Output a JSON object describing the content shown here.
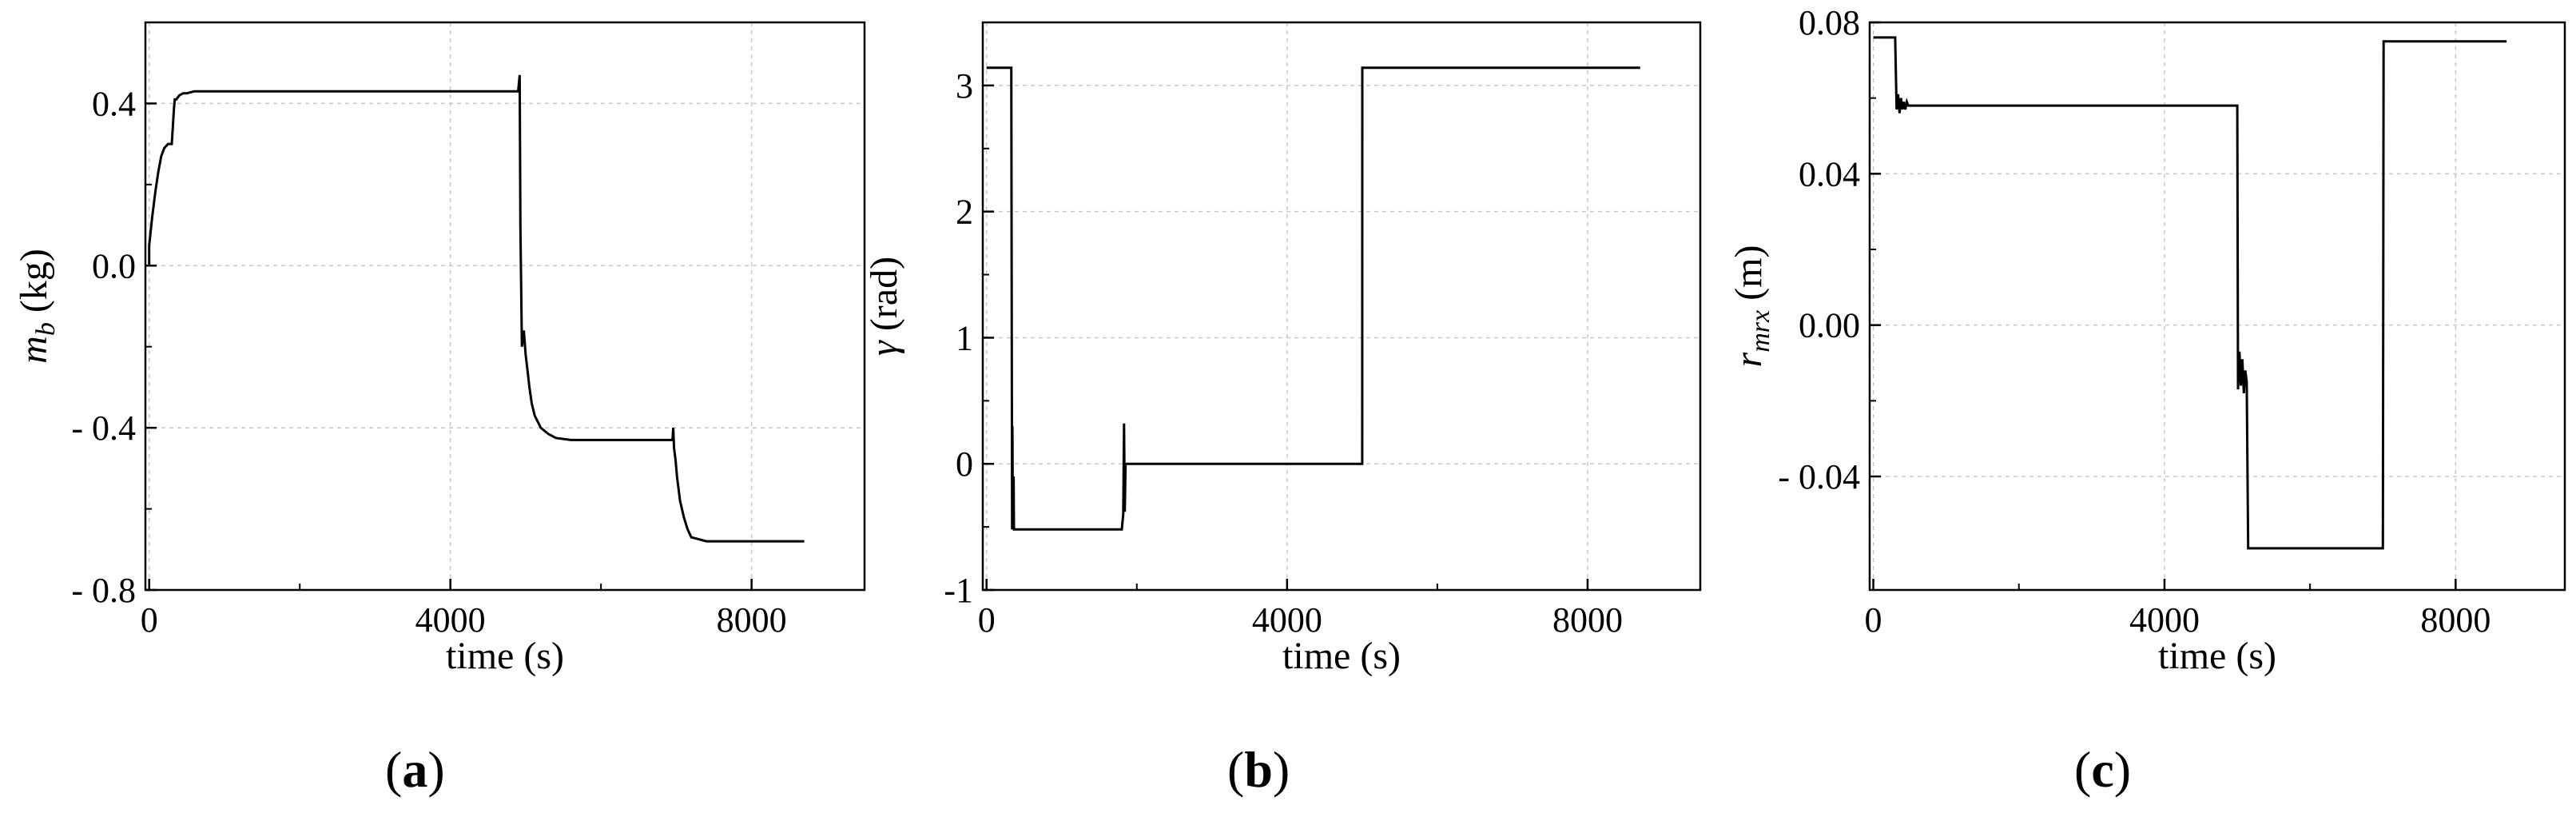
{
  "chart_data": [
    {
      "type": "line",
      "panel_label": "a",
      "xlabel": "time (s)",
      "ylabel_main": "m",
      "ylabel_sub": "b",
      "ylabel_unit": "(kg)",
      "xlim": [
        -50,
        9500
      ],
      "ylim": [
        -0.8,
        0.6
      ],
      "xticks": [
        "0",
        "4000",
        "8000"
      ],
      "xtick_values": [
        0,
        4000,
        8000
      ],
      "yticks": [
        "0.4",
        "0.0",
        "- 0.4",
        "- 0.8"
      ],
      "ytick_values": [
        0.4,
        0.0,
        -0.4,
        -0.8
      ],
      "grid": true,
      "series": [
        {
          "x": [
            0,
            0,
            40,
            80,
            120,
            160,
            200,
            250,
            300,
            330,
            340,
            360,
            400,
            450,
            500,
            600,
            1000,
            2000,
            3000,
            4000,
            4900,
            4920,
            4930,
            4950,
            4975,
            5000,
            5025,
            5050,
            5080,
            5120,
            5200,
            5300,
            5400,
            5600,
            6000,
            6500,
            6950,
            6960,
            6970,
            6990,
            7010,
            7050,
            7100,
            7150,
            7200,
            7300,
            7400,
            7600,
            8000,
            8500,
            8700
          ],
          "y": [
            0.0,
            0.05,
            0.12,
            0.18,
            0.23,
            0.27,
            0.29,
            0.3,
            0.3,
            0.39,
            0.41,
            0.41,
            0.42,
            0.425,
            0.425,
            0.43,
            0.43,
            0.43,
            0.43,
            0.43,
            0.43,
            0.47,
            0.1,
            -0.2,
            -0.16,
            -0.22,
            -0.26,
            -0.3,
            -0.34,
            -0.37,
            -0.4,
            -0.415,
            -0.425,
            -0.43,
            -0.43,
            -0.43,
            -0.43,
            -0.4,
            -0.45,
            -0.48,
            -0.52,
            -0.58,
            -0.62,
            -0.65,
            -0.67,
            -0.675,
            -0.68,
            -0.68,
            -0.68,
            -0.68,
            -0.68
          ]
        }
      ]
    },
    {
      "type": "line",
      "panel_label": "b",
      "xlabel": "time (s)",
      "ylabel_main": "γ",
      "ylabel_sub": "",
      "ylabel_unit": "(rad)",
      "xlim": [
        -50,
        9500
      ],
      "ylim": [
        -1,
        3.5
      ],
      "xticks": [
        "0",
        "4000",
        "8000"
      ],
      "xtick_values": [
        0,
        4000,
        8000
      ],
      "yticks": [
        "3",
        "2",
        "1",
        "0",
        "-1"
      ],
      "ytick_values": [
        3,
        2,
        1,
        0,
        -1
      ],
      "grid": true,
      "series": [
        {
          "x": [
            0,
            330,
            340,
            345,
            350,
            360,
            365,
            1800,
            1820,
            1830,
            1840,
            1850,
            1860,
            1870,
            1880,
            5000,
            5001,
            8700
          ],
          "y": [
            3.14,
            3.14,
            -0.52,
            0.3,
            -0.52,
            -0.1,
            -0.52,
            -0.52,
            -0.4,
            0.32,
            -0.38,
            0.0,
            0.0,
            0.0,
            0.0,
            0.0,
            3.14,
            3.14
          ]
        }
      ]
    },
    {
      "type": "line",
      "panel_label": "c",
      "xlabel": "time (s)",
      "ylabel_main": "r",
      "ylabel_sub": "mrx",
      "ylabel_unit": "(m)",
      "xlim": [
        -50,
        9500
      ],
      "ylim": [
        -0.07,
        0.08
      ],
      "xticks": [
        "0",
        "4000",
        "8000"
      ],
      "xtick_values": [
        0,
        4000,
        8000
      ],
      "yticks": [
        "0.08",
        "0.04",
        "0.00",
        "- 0.04"
      ],
      "ytick_values": [
        0.08,
        0.04,
        0.0,
        -0.04
      ],
      "grid": true,
      "series": [
        {
          "x": [
            0,
            300,
            320,
            340,
            360,
            380,
            400,
            420,
            440,
            460,
            480,
            500,
            600,
            1000,
            2000,
            3000,
            4000,
            5000,
            5010,
            5030,
            5050,
            5070,
            5090,
            5110,
            5130,
            5150,
            5160,
            6000,
            6500,
            7000,
            7010,
            8000,
            8700
          ],
          "y": [
            0.076,
            0.076,
            0.057,
            0.061,
            0.056,
            0.06,
            0.057,
            0.059,
            0.057,
            0.059,
            0.058,
            0.058,
            0.058,
            0.058,
            0.058,
            0.058,
            0.058,
            0.058,
            -0.017,
            -0.007,
            -0.016,
            -0.009,
            -0.018,
            -0.012,
            -0.015,
            -0.059,
            -0.059,
            -0.059,
            -0.059,
            -0.059,
            0.075,
            0.075,
            0.075
          ]
        }
      ]
    }
  ]
}
